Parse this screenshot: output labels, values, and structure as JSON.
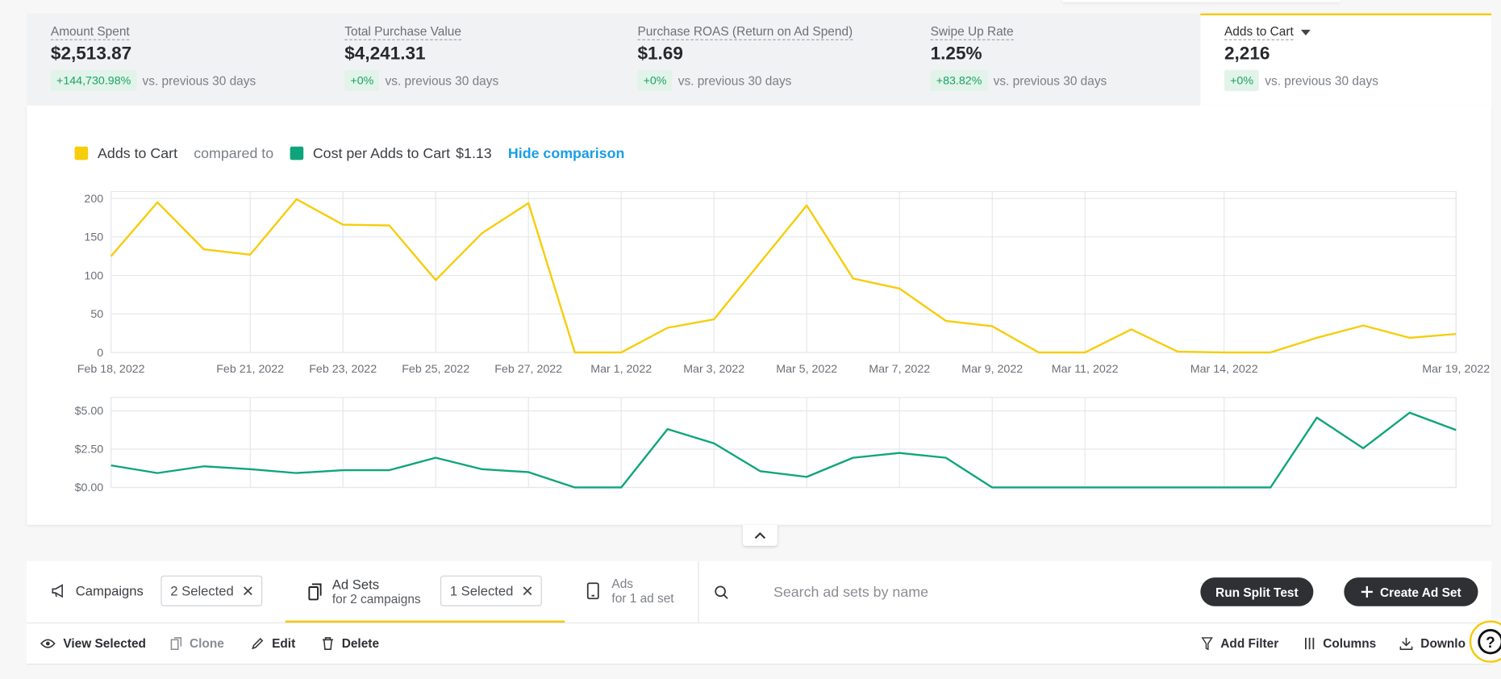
{
  "metrics": [
    {
      "label": "Amount Spent",
      "value": "$2,513.87",
      "change": "+144,730.98%",
      "comparison": "vs. previous 30 days"
    },
    {
      "label": "Total Purchase Value",
      "value": "$4,241.31",
      "change": "+0%",
      "comparison": "vs. previous 30 days"
    },
    {
      "label": "Purchase ROAS (Return on Ad Spend)",
      "value": "$1.69",
      "change": "+0%",
      "comparison": "vs. previous 30 days"
    },
    {
      "label": "Swipe Up Rate",
      "value": "1.25%",
      "change": "+83.82%",
      "comparison": "vs. previous 30 days"
    },
    {
      "label": "Adds to Cart",
      "value": "2,216",
      "change": "+0%",
      "comparison": "vs. previous 30 days"
    }
  ],
  "comparison": {
    "connector": "compared to",
    "summary": "$1.13",
    "hide": "Hide comparison"
  },
  "chart_data": [
    {
      "type": "line",
      "categories": [
        "Feb 18, 2022",
        null,
        null,
        "Feb 21, 2022",
        null,
        "Feb 23, 2022",
        null,
        "Feb 25, 2022",
        null,
        "Feb 27, 2022",
        null,
        "Mar 1, 2022",
        null,
        "Mar 3, 2022",
        null,
        "Mar 5, 2022",
        null,
        "Mar 7, 2022",
        null,
        "Mar 9, 2022",
        null,
        "Mar 11, 2022",
        null,
        null,
        "Mar 14, 2022",
        null,
        null,
        null,
        null,
        "Mar 19, 2022"
      ],
      "series": [
        {
          "name": "Adds to Cart",
          "color": "#f7cc0a",
          "values": [
            125,
            195,
            134,
            127,
            199,
            166,
            165,
            94,
            155,
            194,
            0,
            0,
            32,
            43,
            117,
            191,
            96,
            83,
            41,
            34,
            0,
            0,
            30,
            1,
            0,
            0,
            19,
            35,
            19,
            24
          ]
        }
      ],
      "ylim": [
        0,
        209
      ],
      "yticks": [
        0,
        50,
        100,
        150,
        200
      ],
      "grid": true
    },
    {
      "type": "line",
      "series": [
        {
          "name": "Cost per Adds to Cart",
          "color": "#0ea57a",
          "values": [
            1.44,
            0.94,
            1.38,
            1.19,
            0.94,
            1.13,
            1.13,
            1.94,
            1.19,
            1.0,
            0,
            0,
            3.81,
            2.88,
            1.06,
            0.69,
            1.94,
            2.25,
            1.94,
            0,
            0,
            0,
            0,
            0,
            0,
            0,
            4.56,
            2.56,
            4.88,
            3.75
          ]
        }
      ],
      "ylim": [
        0,
        5.875
      ],
      "yticks": [
        {
          "value": 0,
          "label": "$0.00"
        },
        {
          "value": 2.5,
          "label": "$2.50"
        },
        {
          "value": 5,
          "label": "$5.00"
        }
      ],
      "grid": true
    }
  ],
  "toolbar": {
    "campaigns": {
      "label": "Campaigns",
      "selection": "2 Selected"
    },
    "ad_sets": {
      "label": "Ad Sets",
      "sublabel": "for 2 campaigns",
      "selection": "1 Selected"
    },
    "ads": {
      "label": "Ads",
      "sublabel": "for 1 ad set"
    },
    "search_placeholder": "Search ad sets by name",
    "buttons": [
      "Run Split Test",
      "Create Ad Set"
    ]
  },
  "actions": {
    "left": [
      "View Selected",
      "Clone",
      "Edit",
      "Delete"
    ],
    "right": [
      "Add Filter",
      "Columns",
      "Downlo"
    ]
  }
}
